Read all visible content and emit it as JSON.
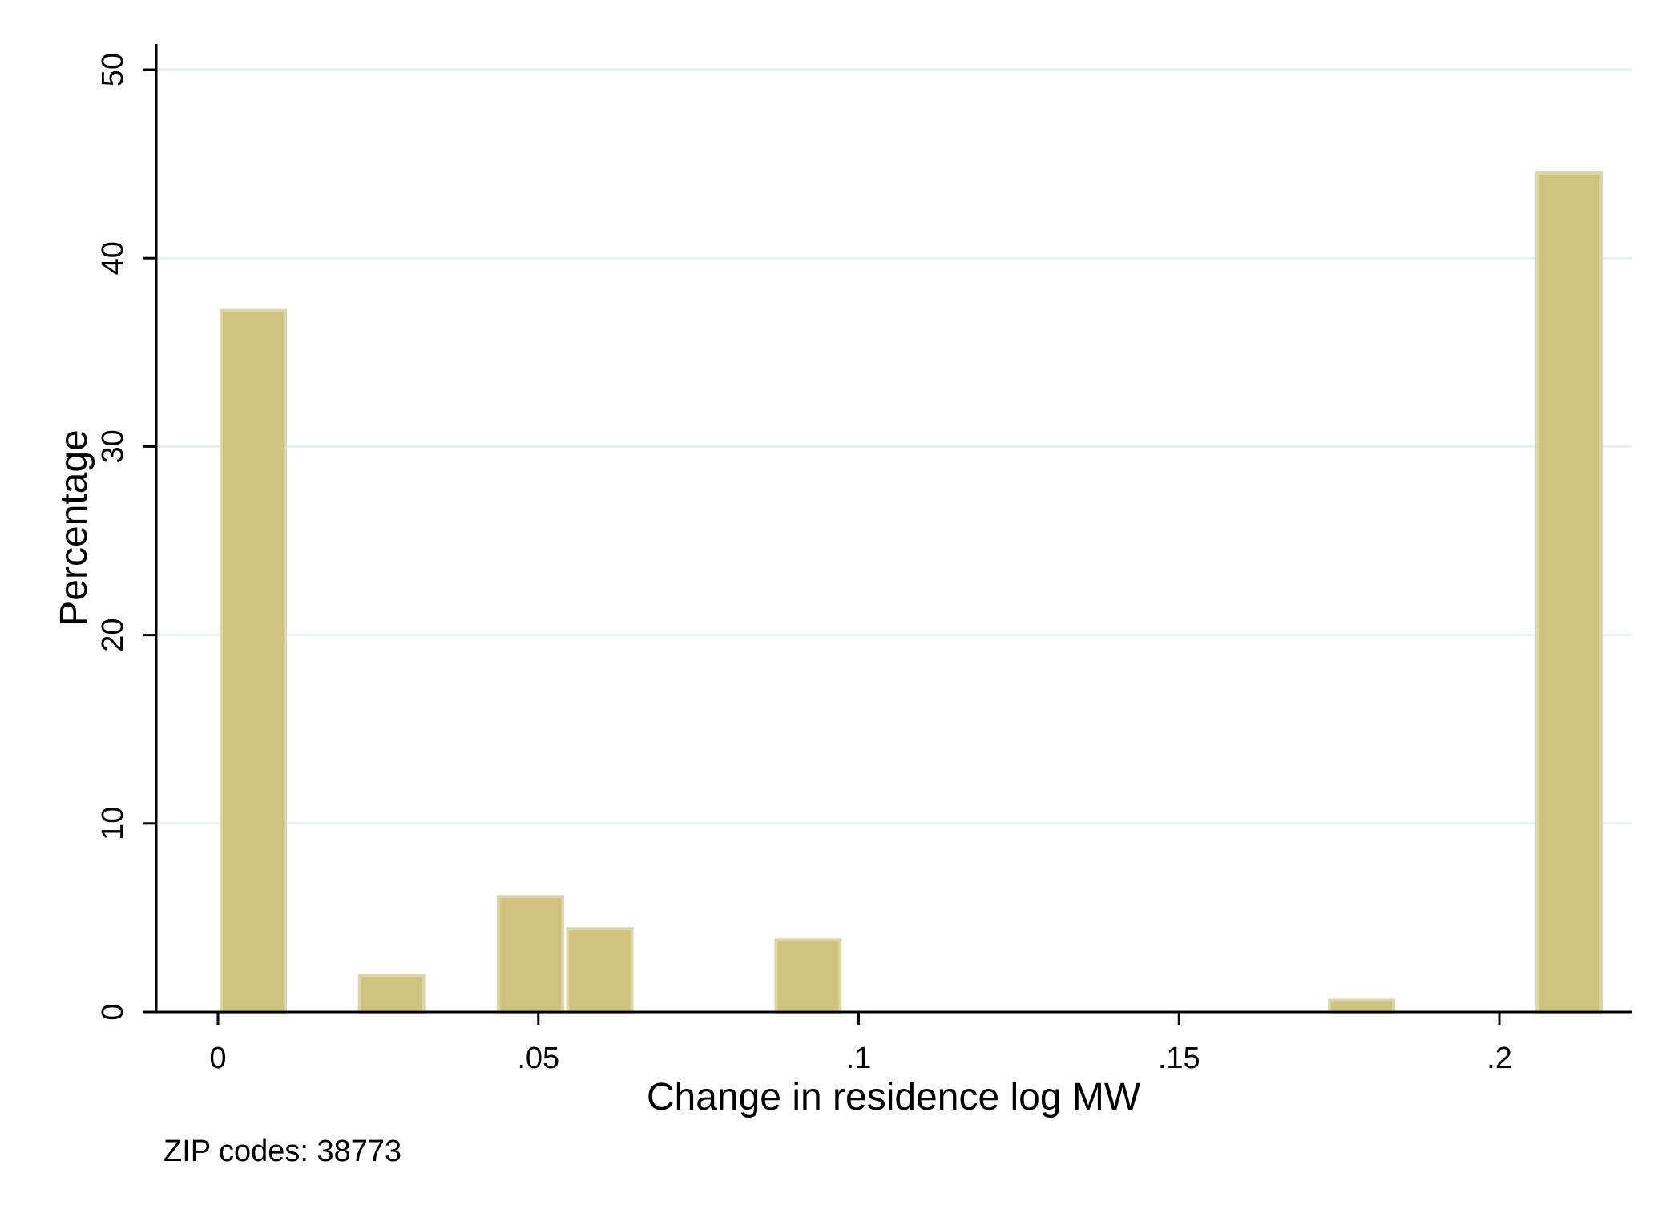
{
  "chart_data": {
    "type": "bar",
    "title": "",
    "xlabel": "Change in residence log MW",
    "ylabel": "Percentage",
    "xlim": [
      -0.01,
      0.22
    ],
    "ylim": [
      0,
      50
    ],
    "grid": true,
    "bar_width": 0.0105,
    "bar_fill": "#cdc37f",
    "bar_stroke": "#dcd5a6",
    "grid_color": "#eaf0ef",
    "x_ticks": [
      {
        "value": 0,
        "label": "0"
      },
      {
        "value": 0.05,
        "label": ".05"
      },
      {
        "value": 0.1,
        "label": ".1"
      },
      {
        "value": 0.15,
        "label": ".15"
      },
      {
        "value": 0.2,
        "label": ".2"
      }
    ],
    "y_ticks": [
      {
        "value": 0,
        "label": "0"
      },
      {
        "value": 10,
        "label": "10"
      },
      {
        "value": 20,
        "label": "20"
      },
      {
        "value": 30,
        "label": "30"
      },
      {
        "value": 40,
        "label": "40"
      },
      {
        "value": 50,
        "label": "50"
      }
    ],
    "bars": [
      {
        "x": 0.0055,
        "value": 37.3
      },
      {
        "x": 0.0271,
        "value": 2.0
      },
      {
        "x": 0.0488,
        "value": 6.2
      },
      {
        "x": 0.0596,
        "value": 4.5
      },
      {
        "x": 0.0921,
        "value": 3.9
      },
      {
        "x": 0.1785,
        "value": 0.7
      },
      {
        "x": 0.2109,
        "value": 44.6
      }
    ],
    "note": "ZIP codes: 38773"
  }
}
